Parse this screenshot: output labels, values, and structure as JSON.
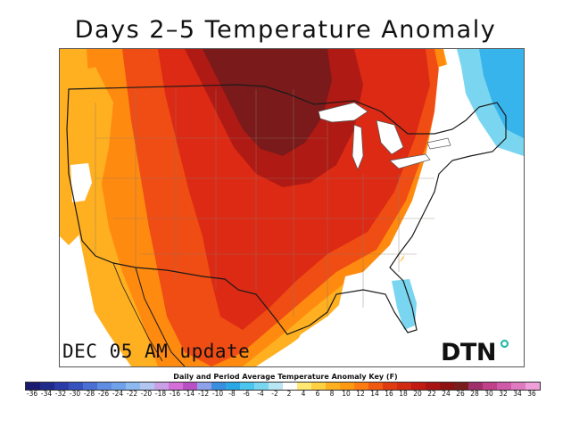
{
  "title": "Days 2–5 Temperature Anomaly",
  "update_label": "DEC 05 AM update",
  "logo_text": "DTN",
  "key": {
    "title": "Daily and Period Average Temperature Anomaly Key (F)",
    "labels": [
      "-36",
      "-34",
      "-32",
      "-30",
      "-28",
      "-26",
      "-24",
      "-22",
      "-20",
      "-18",
      "-16",
      "-14",
      "-12",
      "-10",
      "-8",
      "-6",
      "-4",
      "-2",
      "2",
      "4",
      "6",
      "8",
      "10",
      "12",
      "14",
      "16",
      "18",
      "20",
      "22",
      "24",
      "26",
      "28",
      "30",
      "32",
      "34",
      "36"
    ],
    "colors": [
      "#1a1a6e",
      "#202a8a",
      "#2a3aa6",
      "#3552bf",
      "#4a6fd4",
      "#5f8de2",
      "#6fa0ea",
      "#8db8f0",
      "#b3c6f2",
      "#c9a0e6",
      "#d46fd8",
      "#b84fc4",
      "#8ea0e8",
      "#3a8ee0",
      "#2aa8e6",
      "#4ac6ee",
      "#7ad6f0",
      "#b8e6f2",
      "#ffffff",
      "#ffe873",
      "#ffd040",
      "#ffb020",
      "#ff9a10",
      "#ff7a10",
      "#f05a10",
      "#e03a10",
      "#d02a12",
      "#c01a12",
      "#a81414",
      "#8e1010",
      "#7a1c1c",
      "#a0306a",
      "#c0408a",
      "#d05aa8",
      "#e07ac0",
      "#f0a0d8"
    ]
  },
  "map": {
    "region": "Continental United States",
    "colors": {
      "dark_red": "#7a1a1a",
      "deep_red": "#b01a14",
      "red": "#dc2a14",
      "orange_red": "#f04d14",
      "orange": "#ff8a10",
      "light_orange": "#ffb020",
      "yellow": "#ffd040",
      "white": "#ffffff",
      "light_blue": "#7ad6f0",
      "blue": "#38b4ec",
      "water": "#ffffff"
    }
  }
}
